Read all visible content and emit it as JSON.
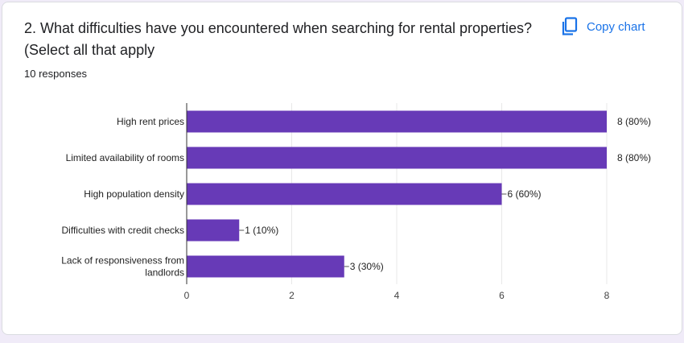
{
  "header": {
    "title_line1": "2. What difficulties have you encountered when searching for rental properties?",
    "title_line2": "(Select all that apply",
    "responses": "10 responses",
    "copy_label": "Copy chart"
  },
  "colors": {
    "bar": "#673ab7",
    "accent": "#1a73e8"
  },
  "chart_data": {
    "type": "bar",
    "orientation": "horizontal",
    "categories": [
      [
        "High rent prices"
      ],
      [
        "Limited availability of rooms"
      ],
      [
        "High population density"
      ],
      [
        "Difficulties with credit checks"
      ],
      [
        "Lack of responsiveness from",
        "landlords"
      ]
    ],
    "values": [
      8,
      8,
      6,
      1,
      3
    ],
    "data_labels": [
      "8 (80%)",
      "8 (80%)",
      "6 (60%)",
      "1 (10%)",
      "3 (30%)"
    ],
    "xlim": [
      0,
      8
    ],
    "xticks": [
      0,
      2,
      4,
      6,
      8
    ],
    "grid": true
  }
}
